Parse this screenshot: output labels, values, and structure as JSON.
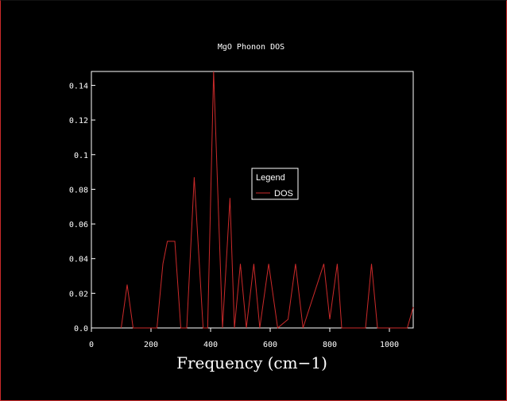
{
  "chart_data": {
    "type": "line",
    "title": "MgO Phonon DOS",
    "xlabel": "Frequency (cm−1)",
    "ylabel": "",
    "xlim": [
      0,
      1080
    ],
    "ylim": [
      0,
      0.148
    ],
    "x_ticks": [
      {
        "value": 0,
        "label": "0"
      },
      {
        "value": 200,
        "label": "200"
      },
      {
        "value": 400,
        "label": "400"
      },
      {
        "value": 600,
        "label": "600"
      },
      {
        "value": 800,
        "label": "800"
      },
      {
        "value": 1000,
        "label": "1000"
      }
    ],
    "y_ticks": [
      {
        "value": 0,
        "label": "0.0"
      },
      {
        "value": 0.02,
        "label": "0.02"
      },
      {
        "value": 0.04,
        "label": "0.04"
      },
      {
        "value": 0.06,
        "label": "0.06"
      },
      {
        "value": 0.08,
        "label": "0.08"
      },
      {
        "value": 0.1,
        "label": "0.1"
      },
      {
        "value": 0.12,
        "label": "0.12"
      },
      {
        "value": 0.14,
        "label": "0.14"
      }
    ],
    "grid": false,
    "legend": {
      "title": "Legend",
      "position": "center-right"
    },
    "series": [
      {
        "name": "DOS",
        "color": "#cc2a2a",
        "x": [
          100,
          120,
          140,
          220,
          240,
          255,
          280,
          300,
          320,
          345,
          375,
          390,
          410,
          440,
          465,
          480,
          500,
          520,
          545,
          565,
          595,
          625,
          660,
          685,
          710,
          780,
          800,
          825,
          840,
          870,
          920,
          940,
          960,
          1060,
          1080
        ],
        "y": [
          0,
          0.025,
          0,
          0,
          0.037,
          0.05,
          0.05,
          0,
          0,
          0.087,
          0,
          0,
          0.148,
          0,
          0.075,
          0,
          0.037,
          0,
          0.037,
          0,
          0.037,
          0,
          0.005,
          0.037,
          0,
          0.037,
          0.005,
          0.037,
          0,
          0,
          0,
          0.037,
          0,
          0,
          0.012
        ]
      }
    ]
  }
}
